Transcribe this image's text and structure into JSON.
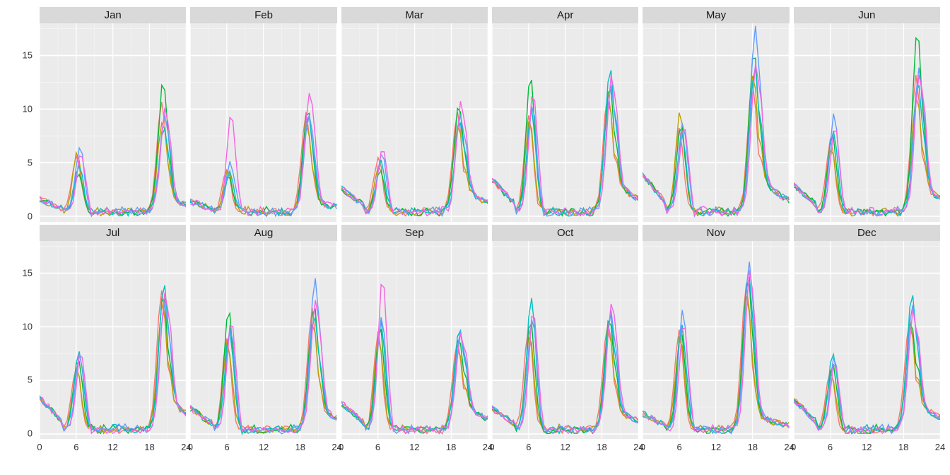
{
  "chart": {
    "type": "faceted-line",
    "background_color": "#ffffff",
    "panel_bg": "#ebebeb",
    "strip_bg": "#d9d9d9",
    "grid_major_color": "#ffffff",
    "grid_minor_color": "#f5f5f5",
    "text_color": "#333333",
    "axis_fontsize": 13,
    "strip_fontsize": 15,
    "line_width": 1.4,
    "n_cols": 6,
    "n_rows": 2,
    "xlim": [
      0,
      24
    ],
    "ylim": [
      -0.5,
      18
    ],
    "x_ticks": [
      0,
      6,
      12,
      18,
      24
    ],
    "x_minor": [
      3,
      9,
      15,
      21
    ],
    "y_ticks": [
      0,
      5,
      10,
      15
    ],
    "y_minor": [
      2.5,
      7.5,
      12.5,
      17.5
    ],
    "series_colors": [
      "#F8766D",
      "#B79F00",
      "#00BA38",
      "#00BFC4",
      "#619CFF",
      "#F564E3"
    ],
    "facets": [
      {
        "label": "Jan",
        "peaks": {
          "am": [
            5.0,
            5.5,
            3.5,
            4.2,
            6.0,
            5.2
          ],
          "pm": [
            10.0,
            8.5,
            12.0,
            7.8,
            9.2,
            9.5
          ],
          "pm_hour": 20,
          "tail": 1.2
        }
      },
      {
        "label": "Feb",
        "peaks": {
          "am": [
            4.0,
            3.8,
            3.2,
            3.5,
            4.5,
            9.0
          ],
          "pm": [
            9.0,
            8.0,
            9.5,
            8.8,
            9.0,
            11.3
          ],
          "pm_hour": 19,
          "tail": 1.0
        }
      },
      {
        "label": "Mar",
        "peaks": {
          "am": [
            5.0,
            4.2,
            4.0,
            4.5,
            5.5,
            5.8
          ],
          "pm": [
            9.0,
            8.2,
            9.8,
            8.5,
            9.0,
            10.2
          ],
          "pm_hour": 19,
          "tail": 2.2
        }
      },
      {
        "label": "Apr",
        "peaks": {
          "am": [
            9.0,
            8.5,
            12.5,
            9.5,
            10.0,
            11.0
          ],
          "pm": [
            11.0,
            10.5,
            11.8,
            13.5,
            12.0,
            12.5
          ],
          "pm_hour": 19,
          "tail": 3.0
        }
      },
      {
        "label": "May",
        "peaks": {
          "am": [
            7.5,
            9.5,
            8.0,
            7.0,
            8.5,
            8.2
          ],
          "pm": [
            12.0,
            13.0,
            14.8,
            13.5,
            17.2,
            14.0
          ],
          "pm_hour": 18,
          "tail": 3.5
        }
      },
      {
        "label": "Jun",
        "peaks": {
          "am": [
            6.5,
            6.0,
            7.0,
            7.5,
            9.2,
            7.8
          ],
          "pm": [
            12.5,
            11.0,
            16.7,
            12.0,
            13.5,
            13.0
          ],
          "pm_hour": 20,
          "tail": 2.5
        }
      },
      {
        "label": "Jul",
        "peaks": {
          "am": [
            6.0,
            5.5,
            6.5,
            7.5,
            6.8,
            7.0
          ],
          "pm": [
            13.0,
            11.5,
            12.5,
            13.7,
            12.0,
            12.8
          ],
          "pm_hour": 20,
          "tail": 3.0
        }
      },
      {
        "label": "Aug",
        "peaks": {
          "am": [
            8.5,
            8.0,
            11.3,
            9.0,
            9.5,
            10.0
          ],
          "pm": [
            11.0,
            10.0,
            11.5,
            10.5,
            14.0,
            12.0
          ],
          "pm_hour": 20,
          "tail": 2.0
        }
      },
      {
        "label": "Sep",
        "peaks": {
          "am": [
            9.0,
            8.5,
            9.5,
            10.0,
            10.5,
            14.1
          ],
          "pm": [
            8.0,
            7.5,
            8.5,
            9.5,
            9.0,
            8.8
          ],
          "pm_hour": 19,
          "tail": 2.5
        }
      },
      {
        "label": "Oct",
        "peaks": {
          "am": [
            9.5,
            8.8,
            10.0,
            12.5,
            10.5,
            11.0
          ],
          "pm": [
            10.0,
            9.0,
            10.5,
            10.8,
            11.0,
            11.9
          ],
          "pm_hour": 19,
          "tail": 2.0
        }
      },
      {
        "label": "Nov",
        "peaks": {
          "am": [
            9.0,
            8.5,
            9.2,
            9.5,
            11.1,
            10.0
          ],
          "pm": [
            13.5,
            12.5,
            14.0,
            14.5,
            15.8,
            14.8
          ],
          "pm_hour": 17,
          "tail": 1.5
        }
      },
      {
        "label": "Dec",
        "peaks": {
          "am": [
            5.5,
            5.0,
            6.0,
            7.2,
            6.5,
            6.2
          ],
          "pm": [
            10.5,
            9.5,
            10.0,
            12.7,
            11.8,
            11.0
          ],
          "pm_hour": 19,
          "tail": 2.8
        }
      }
    ]
  }
}
